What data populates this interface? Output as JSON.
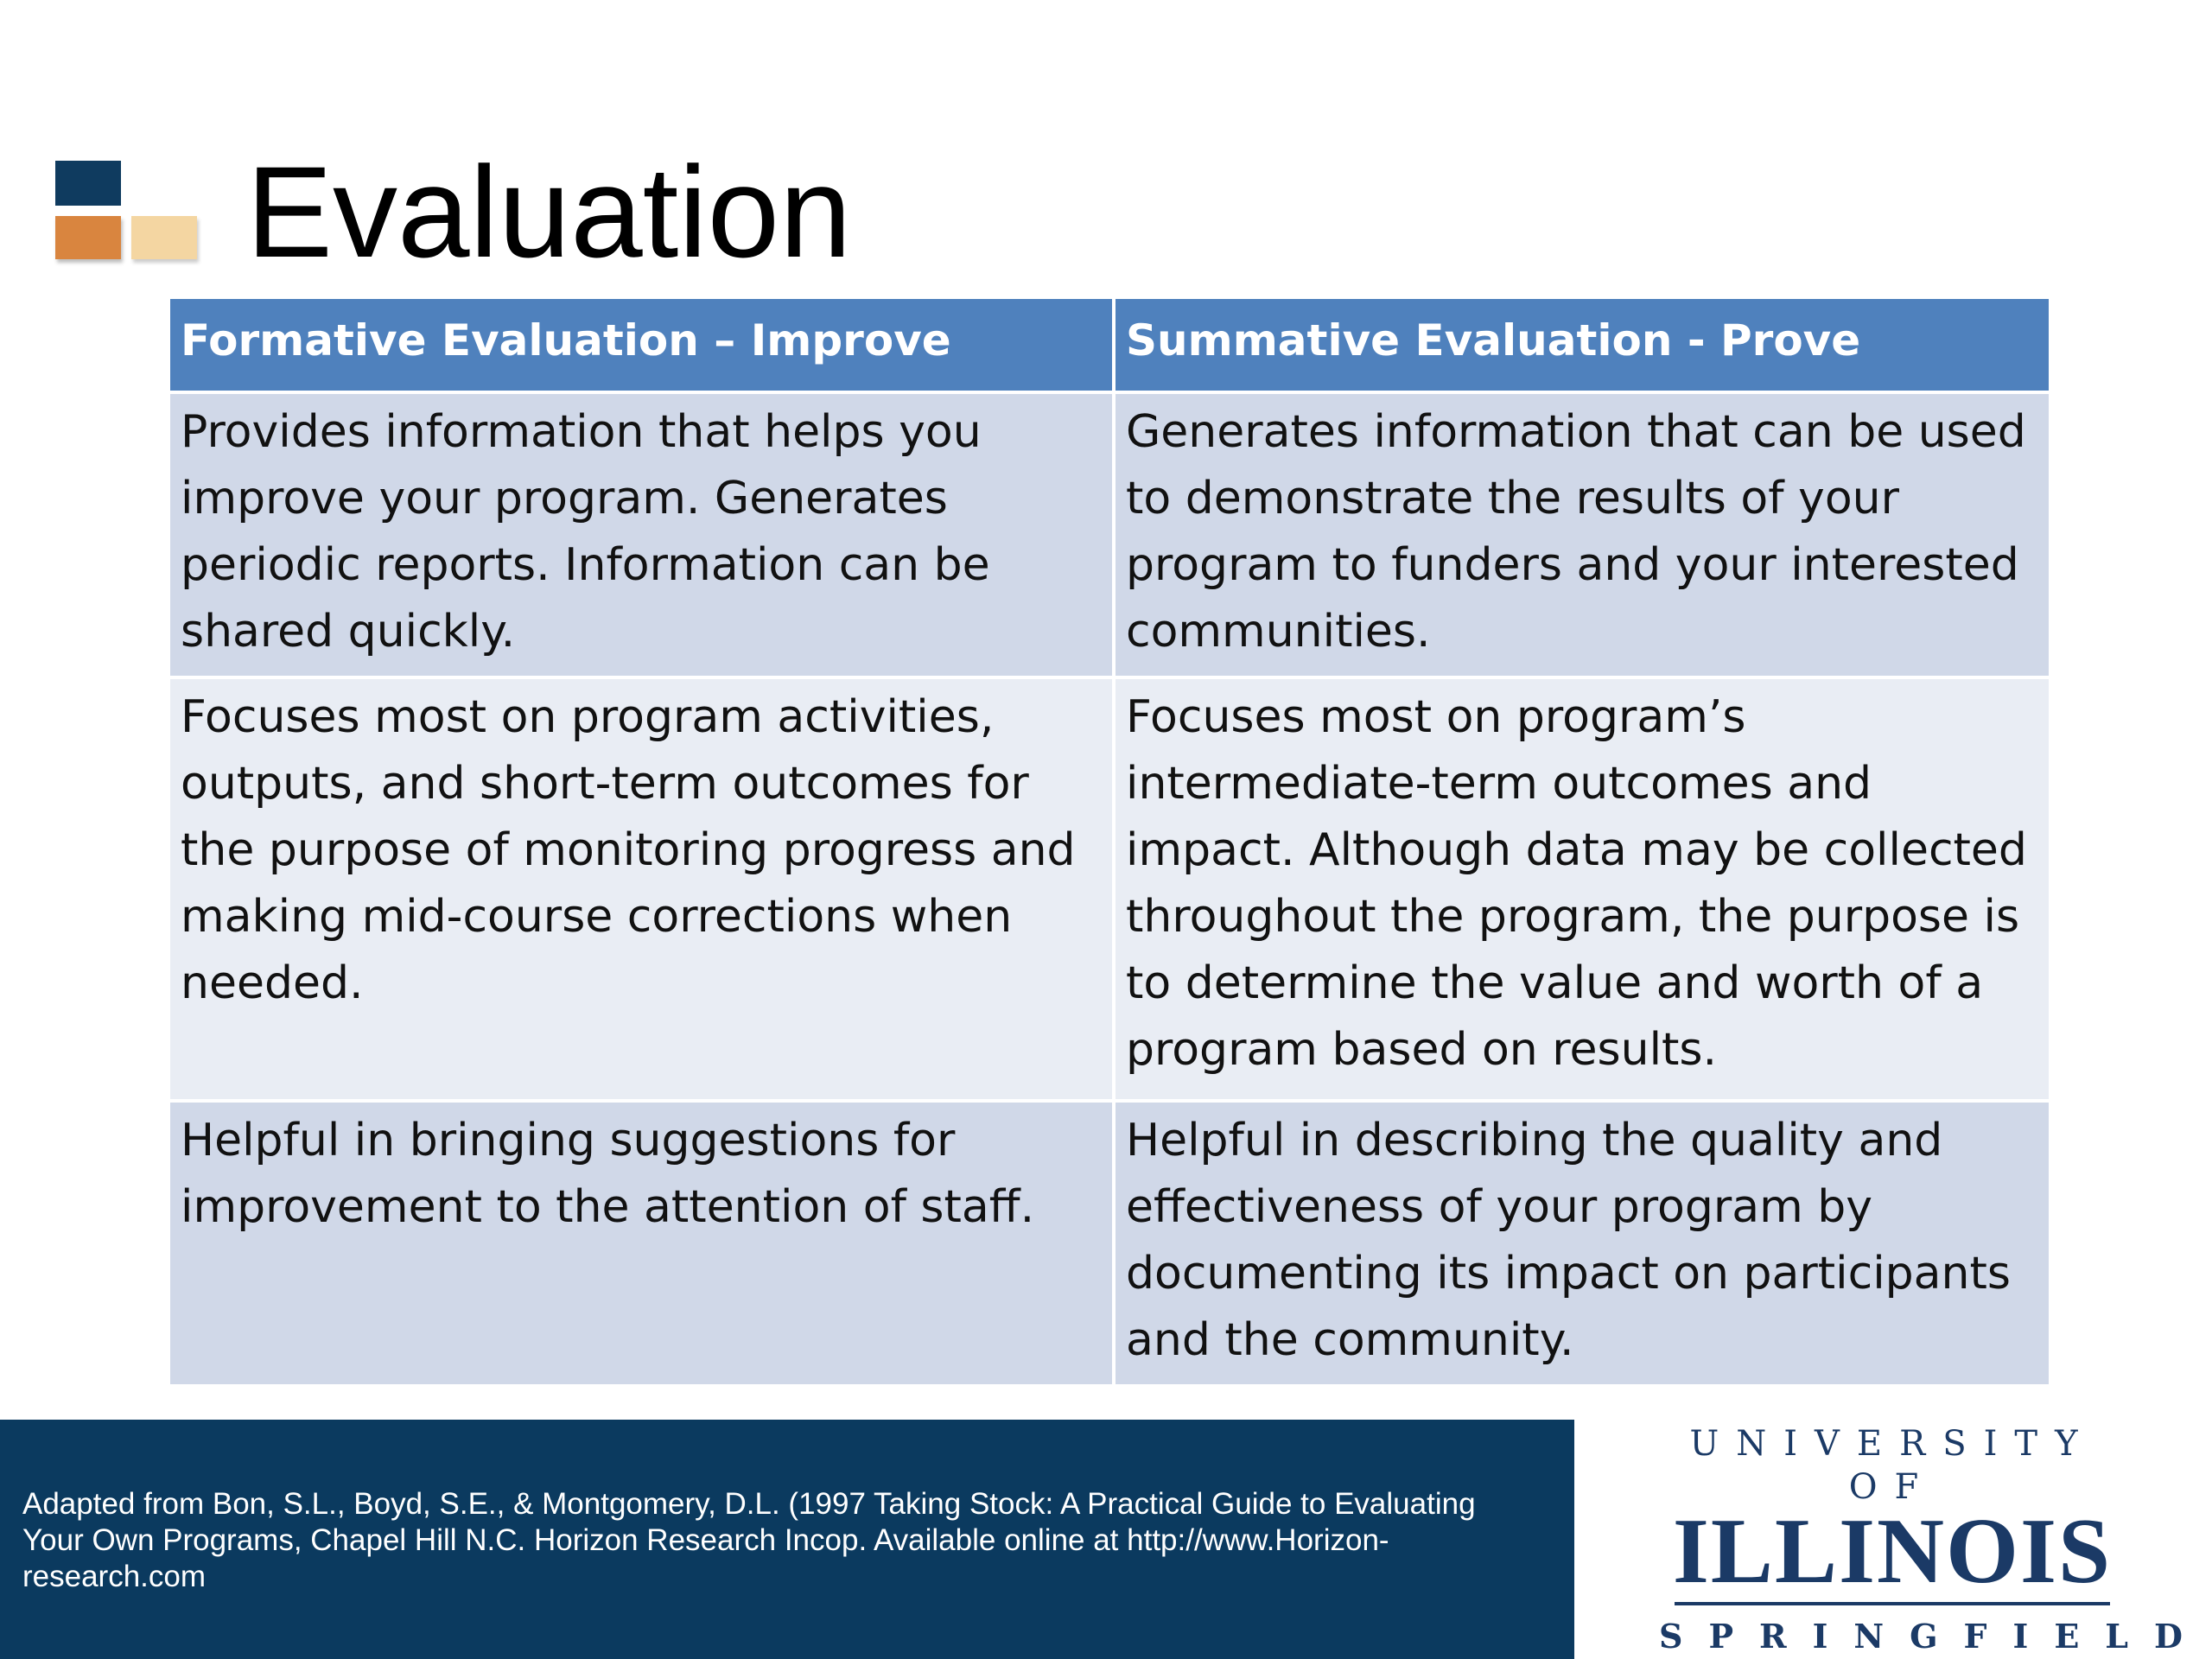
{
  "slide": {
    "title": "Evaluation",
    "table": {
      "headers": [
        "Formative Evaluation – Improve",
        "Summative Evaluation - Prove"
      ],
      "rows": [
        [
          "Provides information that helps you improve your program. Generates periodic reports. Information can be shared quickly.",
          "Generates information that can be used to demonstrate the results of your program to funders and your interested communities."
        ],
        [
          "Focuses most on program activities, outputs, and short-term outcomes for the purpose of monitoring progress and making mid-course corrections when needed.",
          "Focuses most on program’s intermediate-term outcomes and impact.  Although data may be collected throughout the program, the purpose is to determine the value and worth of a program based on results."
        ],
        [
          "Helpful in bringing suggestions for improvement to the attention of staff.",
          "Helpful in describing the quality and effectiveness of your program by documenting its impact on participants and the community."
        ]
      ]
    },
    "footer": {
      "citation": "Adapted from Bon, S.L., Boyd, S.E., & Montgomery, D.L. (1997 Taking Stock: A Practical Guide to Evaluating Your Own Programs, Chapel Hill N.C. Horizon Research Incop. Available online at http://www.Horizon-research.com"
    },
    "logo": {
      "top": "UNIVERSITY OF",
      "main": "ILLINOIS",
      "bottom": "SPRINGFIELD"
    },
    "colors": {
      "header_blue": "#4f81bd",
      "row_dark": "#d0d8e8",
      "row_light": "#e9edf4",
      "footer_navy": "#0b3a5f",
      "accent_orange": "#d9853f",
      "accent_tan": "#f4d6a2"
    }
  }
}
